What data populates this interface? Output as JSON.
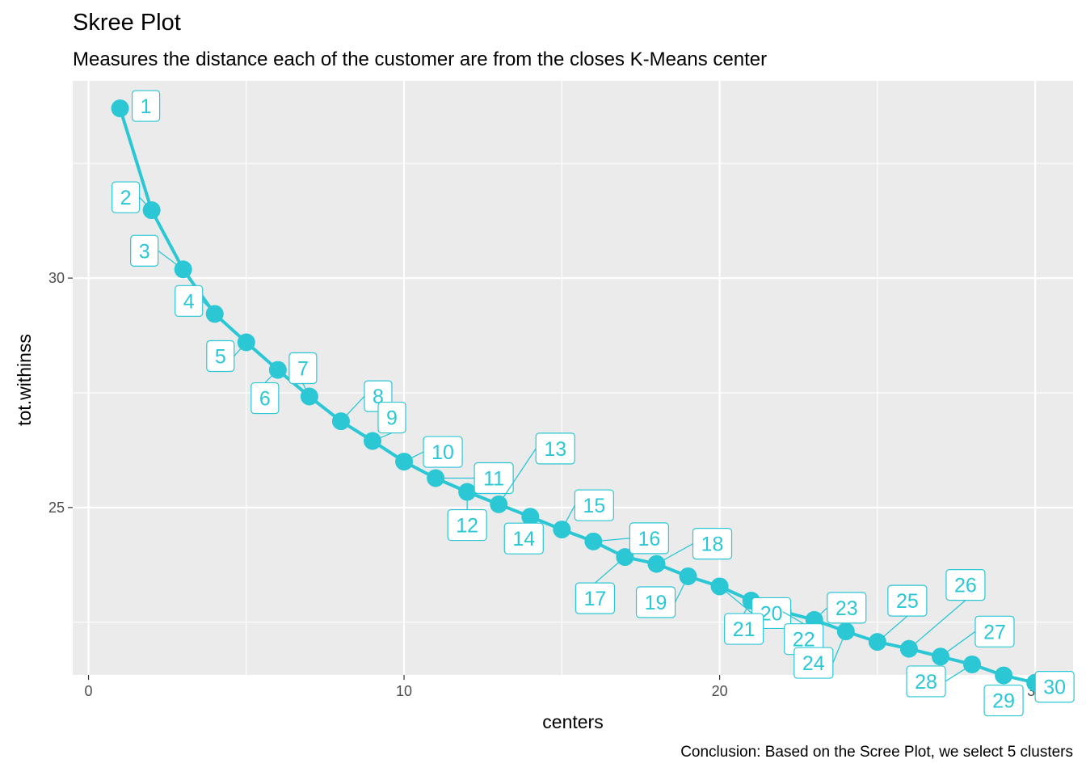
{
  "title": "Skree Plot",
  "subtitle": "Measures the distance each of the customer are from the closes K-Means center",
  "caption": "Conclusion: Based on the Scree Plot, we select 5 clusters",
  "colors": {
    "series": "#2BC7D5",
    "panel": "#EBEBEB",
    "grid": "#FFFFFF",
    "text": "#4D4D4D"
  },
  "chart_data": {
    "type": "line",
    "title": "Skree Plot",
    "subtitle": "Measures the distance each of the customer are from the closes K-Means center",
    "xlabel": "centers",
    "ylabel": "tot.withinss",
    "xlim": [
      -0.5,
      31.2
    ],
    "ylim": [
      21.35,
      34.3
    ],
    "x_ticks": [
      0,
      10,
      20,
      30
    ],
    "y_ticks": [
      25,
      30
    ],
    "grid": true,
    "points_labeled": true,
    "x": [
      1,
      2,
      3,
      4,
      5,
      6,
      7,
      8,
      9,
      10,
      11,
      12,
      13,
      14,
      15,
      16,
      17,
      18,
      19,
      20,
      21,
      22,
      23,
      24,
      25,
      26,
      27,
      28,
      29,
      30
    ],
    "y": [
      33.7,
      31.48,
      30.19,
      29.22,
      28.6,
      28.0,
      27.42,
      26.88,
      26.45,
      26.0,
      25.64,
      25.34,
      25.07,
      24.8,
      24.52,
      24.26,
      23.92,
      23.77,
      23.5,
      23.28,
      22.97,
      22.73,
      22.55,
      22.3,
      22.07,
      21.92,
      21.75,
      21.58,
      21.34,
      21.18
    ],
    "point_labels": [
      "1",
      "2",
      "3",
      "4",
      "5",
      "6",
      "7",
      "8",
      "9",
      "10",
      "11",
      "12",
      "13",
      "14",
      "15",
      "16",
      "17",
      "18",
      "19",
      "20",
      "21",
      "22",
      "23",
      "24",
      "25",
      "26",
      "27",
      "28",
      "29",
      "30"
    ]
  }
}
